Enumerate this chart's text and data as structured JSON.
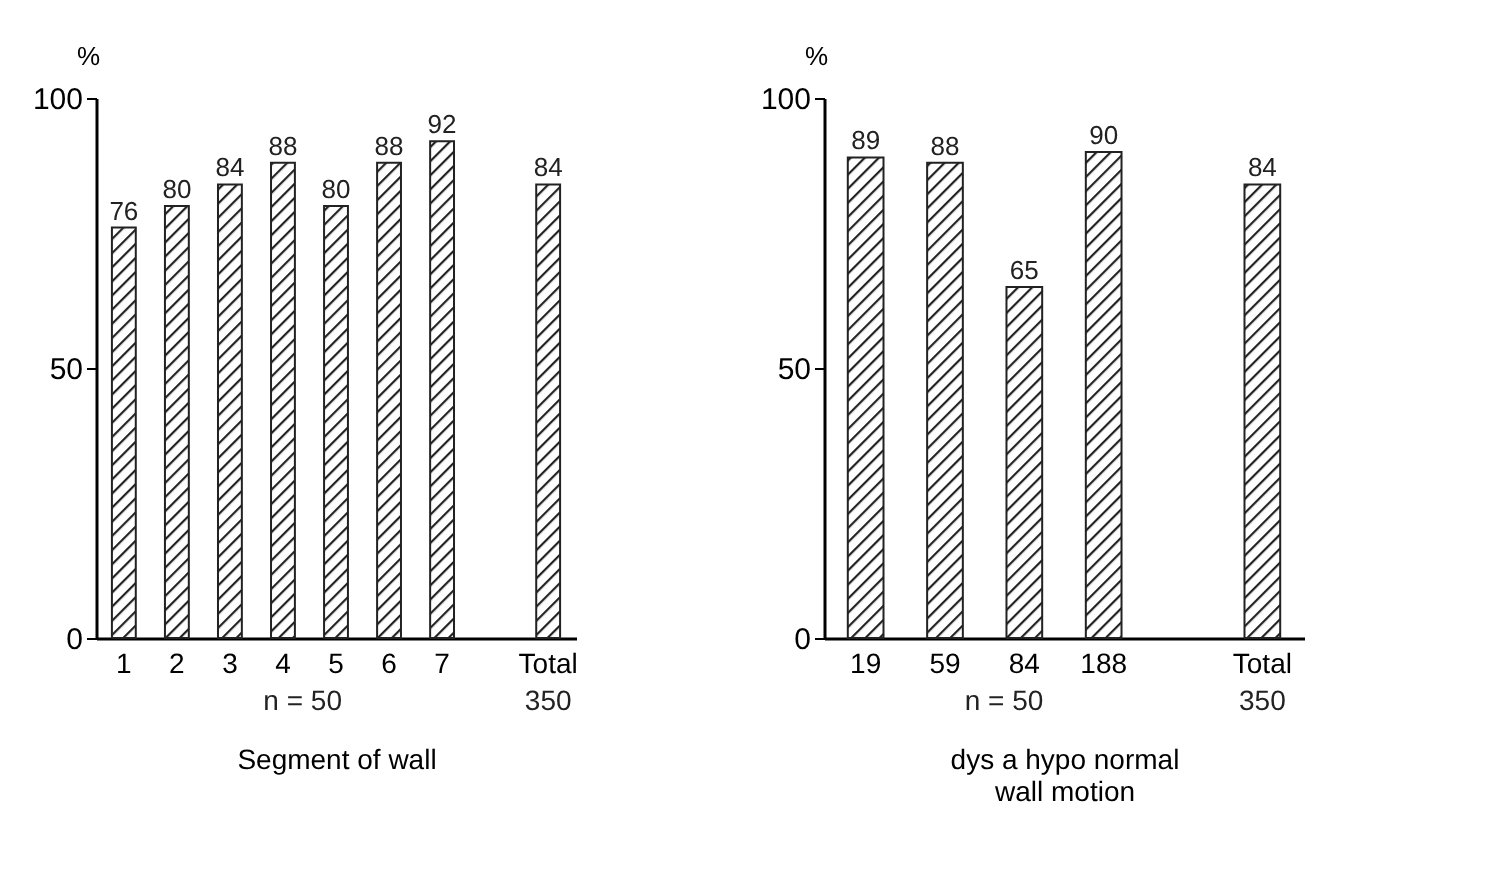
{
  "chart_data": [
    {
      "type": "bar",
      "ylabel": "%",
      "xlabel": "Segment of wall",
      "categories": [
        "1",
        "2",
        "3",
        "4",
        "5",
        "6",
        "7",
        null,
        "Total"
      ],
      "values": [
        76,
        80,
        84,
        88,
        80,
        88,
        92,
        null,
        84
      ],
      "color": "#222222",
      "ylim": [
        0,
        100
      ],
      "yticks": [
        0,
        50,
        100
      ],
      "data_labels": true,
      "grid": false,
      "annotations": [
        "n = 50",
        "350"
      ]
    },
    {
      "type": "bar",
      "ylabel": "%",
      "xlabel": "dys a hypo normal\nwall motion",
      "categories": [
        "19",
        "59",
        "84",
        "188",
        null,
        "Total"
      ],
      "values": [
        89,
        88,
        65,
        90,
        null,
        84
      ],
      "color": "#222222",
      "ylim": [
        0,
        100
      ],
      "yticks": [
        0,
        50,
        100
      ],
      "data_labels": true,
      "grid": false,
      "annotations": [
        "n = 50",
        "350"
      ]
    }
  ]
}
